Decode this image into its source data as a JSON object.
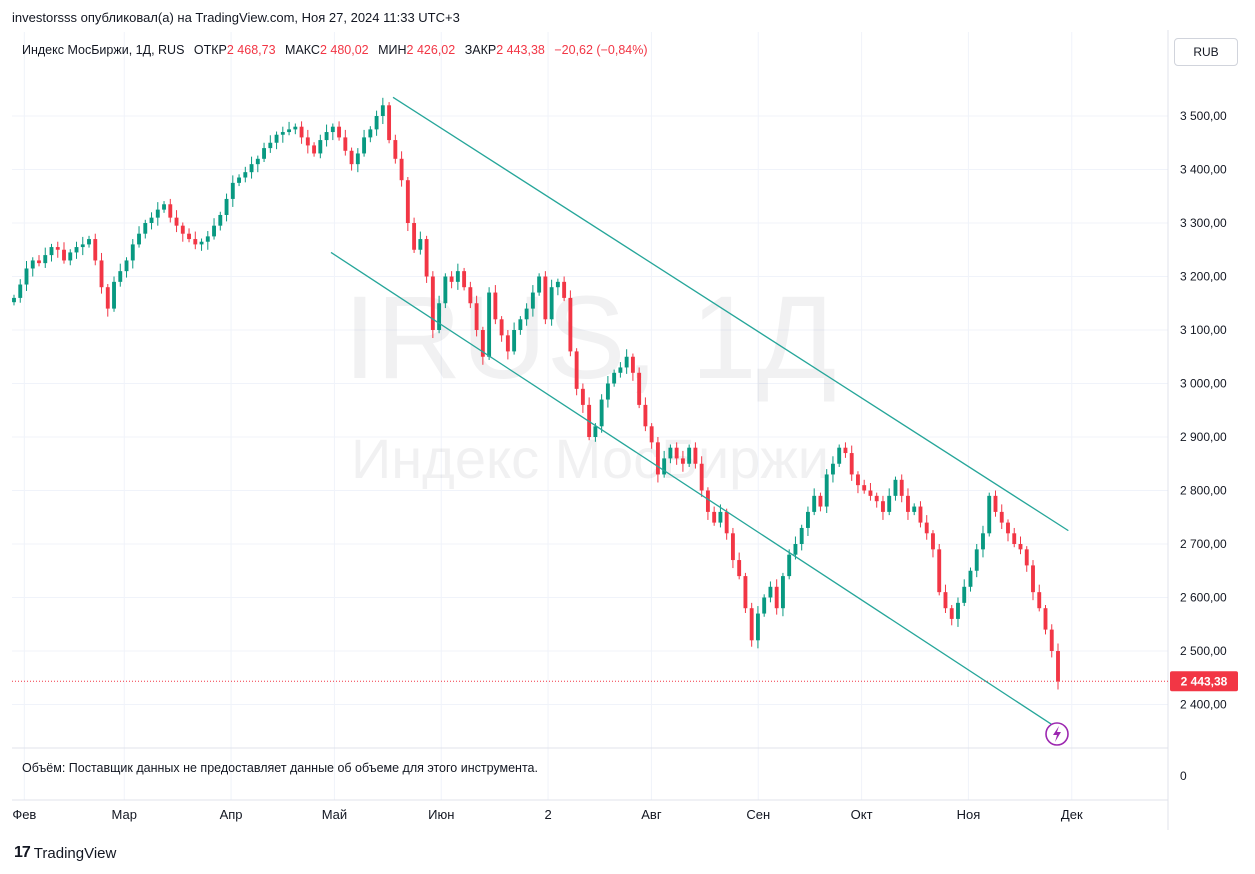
{
  "header": {
    "published": "investorsss опубликовал(а) на TradingView.com, Ноя 27, 2024 11:33 UTC+3"
  },
  "legend": {
    "symbol": "Индекс МосБиржи, 1Д, RUS",
    "open_label": "ОТКР",
    "open": "2 468,73",
    "high_label": "МАКС",
    "high": "2 480,02",
    "low_label": "МИН",
    "low": "2 426,02",
    "close_label": "ЗАКР",
    "close": "2 443,38",
    "change": "−20,62 (−0,84%)"
  },
  "currency_button": "RUB",
  "watermark": {
    "ticker": "IRUS, 1Д",
    "name": "Индекс МосБиржи"
  },
  "volume_pane": {
    "message": "Объём: Поставщик данных не предоставляет данные об объеме для этого инструмента.",
    "axis_label": "0"
  },
  "last_price_label": "2 443,38",
  "footer": {
    "brand": "TradingView",
    "logo_mark": "17"
  },
  "colors": {
    "up": "#089981",
    "down": "#f23645",
    "trendline": "#26a69a",
    "grid": "#f0f3fa"
  },
  "chart_data": {
    "type": "candlestick",
    "y_ticks": [
      "3 500,00",
      "3 400,00",
      "3 300,00",
      "3 200,00",
      "3 100,00",
      "3 000,00",
      "2 900,00",
      "2 800,00",
      "2 700,00",
      "2 600,00",
      "2 500,00",
      "2 400,00"
    ],
    "y_tick_values": [
      3500,
      3400,
      3300,
      3200,
      3100,
      3000,
      2900,
      2800,
      2700,
      2600,
      2500,
      2400
    ],
    "x_ticks": [
      {
        "label": "Фев",
        "date": "2024-02-01"
      },
      {
        "label": "Мар",
        "date": "2024-03-01"
      },
      {
        "label": "Апр",
        "date": "2024-04-01"
      },
      {
        "label": "Май",
        "date": "2024-05-01"
      },
      {
        "label": "Июн",
        "date": "2024-06-01"
      },
      {
        "label": "2",
        "date": "2024-07-02"
      },
      {
        "label": "Авг",
        "date": "2024-08-01"
      },
      {
        "label": "Сен",
        "date": "2024-09-01"
      },
      {
        "label": "Окт",
        "date": "2024-10-01"
      },
      {
        "label": "Ноя",
        "date": "2024-11-01"
      },
      {
        "label": "Дек",
        "date": "2024-12-01"
      }
    ],
    "trendlines": [
      {
        "from": {
          "date": "2024-05-18",
          "value": 3535
        },
        "to": {
          "date": "2024-11-30",
          "value": 2725
        }
      },
      {
        "from": {
          "date": "2024-04-30",
          "value": 3245
        },
        "to": {
          "date": "2024-11-27",
          "value": 2355
        }
      }
    ],
    "last_price": 2443.38,
    "closes": [
      3160,
      3185,
      3215,
      3230,
      3225,
      3240,
      3255,
      3250,
      3230,
      3245,
      3255,
      3260,
      3270,
      3230,
      3180,
      3140,
      3190,
      3210,
      3230,
      3260,
      3280,
      3300,
      3310,
      3325,
      3335,
      3310,
      3295,
      3280,
      3270,
      3260,
      3265,
      3275,
      3295,
      3315,
      3345,
      3375,
      3385,
      3395,
      3410,
      3420,
      3440,
      3450,
      3465,
      3470,
      3475,
      3480,
      3460,
      3445,
      3430,
      3455,
      3470,
      3480,
      3460,
      3435,
      3410,
      3430,
      3460,
      3475,
      3500,
      3520,
      3455,
      3420,
      3380,
      3300,
      3250,
      3270,
      3200,
      3100,
      3150,
      3200,
      3190,
      3210,
      3180,
      3150,
      3100,
      3050,
      3170,
      3120,
      3090,
      3060,
      3100,
      3120,
      3140,
      3170,
      3200,
      3120,
      3180,
      3190,
      3160,
      3060,
      2990,
      2960,
      2900,
      2920,
      2970,
      3000,
      3020,
      3030,
      3050,
      3020,
      2960,
      2920,
      2890,
      2830,
      2860,
      2880,
      2860,
      2850,
      2880,
      2850,
      2800,
      2760,
      2740,
      2760,
      2720,
      2670,
      2640,
      2580,
      2520,
      2570,
      2600,
      2620,
      2580,
      2640,
      2680,
      2700,
      2730,
      2760,
      2790,
      2770,
      2830,
      2850,
      2880,
      2870,
      2830,
      2810,
      2800,
      2790,
      2780,
      2760,
      2790,
      2820,
      2790,
      2760,
      2770,
      2740,
      2720,
      2690,
      2610,
      2580,
      2560,
      2590,
      2620,
      2650,
      2690,
      2720,
      2790,
      2760,
      2740,
      2720,
      2700,
      2690,
      2660,
      2610,
      2580,
      2540,
      2500,
      2443
    ],
    "date_range": {
      "start": "2024-01-29",
      "end": "2024-11-27"
    }
  }
}
